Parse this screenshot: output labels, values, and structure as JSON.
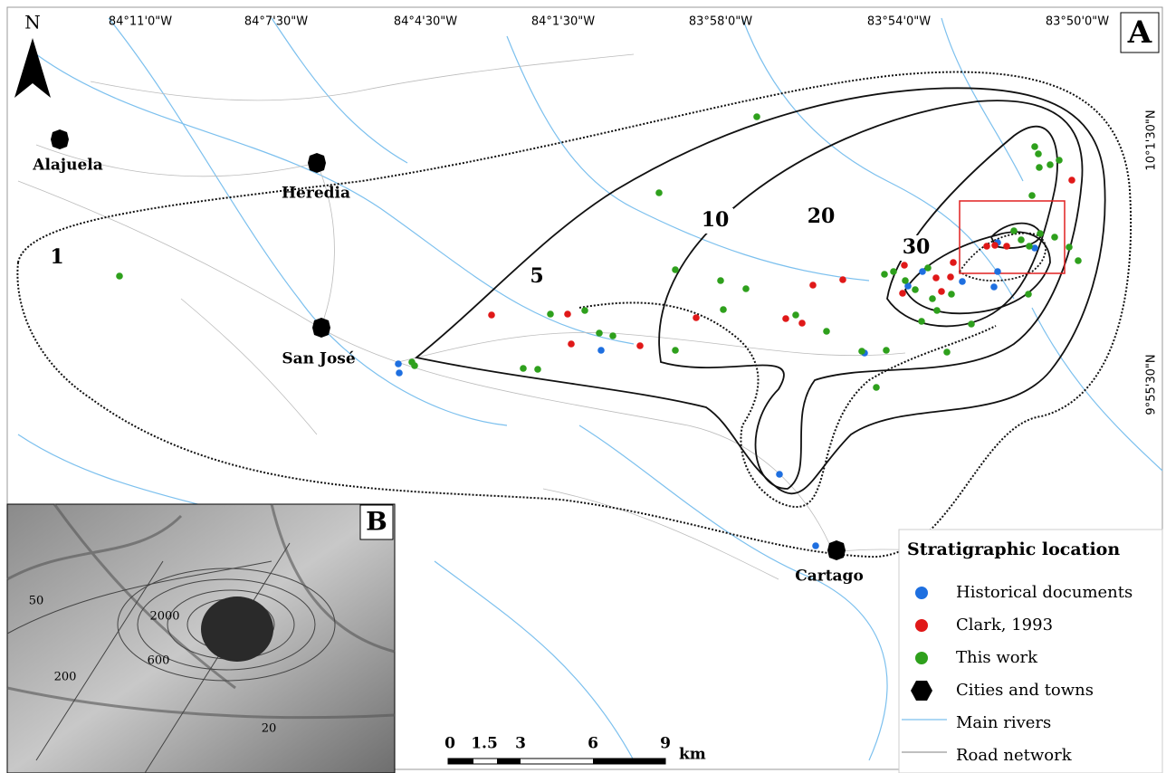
{
  "panels": {
    "main": "A",
    "inset": "B"
  },
  "north": "N",
  "longitudes": [
    "84°11'0\"W",
    "84°7'30\"W",
    "84°4'30\"W",
    "84°1'30\"W",
    "83°58'0\"W",
    "83°54'0\"W",
    "83°50'0\"W"
  ],
  "latitudes": [
    "10°1'30\"N",
    "9°55'30\"N"
  ],
  "cities": [
    "Alajuela",
    "Heredia",
    "San José",
    "Cartago"
  ],
  "isopachs": [
    "1",
    "5",
    "10",
    "20",
    "30"
  ],
  "inset_labels": [
    "50",
    "2000",
    "600",
    "200",
    "20"
  ],
  "scale": {
    "ticks": [
      "0",
      "1.5",
      "3",
      "6",
      "9"
    ],
    "unit": "km"
  },
  "legend": {
    "title": "Stratigraphic location",
    "items": [
      {
        "label": "Historical documents",
        "color": "#1e6fe0"
      },
      {
        "label": "Clark, 1993",
        "color": "#e01818"
      },
      {
        "label": "This work",
        "color": "#2ea01c"
      },
      {
        "label": "Cities and towns",
        "color": "#000000"
      },
      {
        "label": "Main rivers",
        "color": "#7cc0ee"
      },
      {
        "label": "Road network",
        "color": "#555555"
      }
    ]
  }
}
